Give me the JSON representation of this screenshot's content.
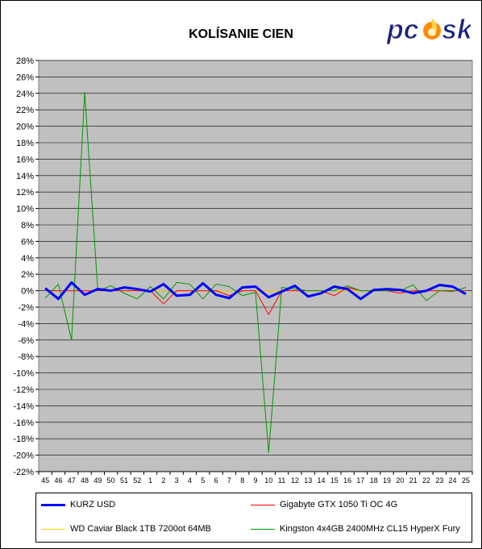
{
  "chart_data": {
    "type": "line",
    "title": "KOLÍSANIE CIEN",
    "x": [
      "45",
      "46",
      "47",
      "48",
      "49",
      "50",
      "51",
      "52",
      "1",
      "2",
      "3",
      "4",
      "5",
      "6",
      "7",
      "8",
      "9",
      "10",
      "11",
      "12",
      "13",
      "14",
      "15",
      "16",
      "17",
      "18",
      "19",
      "20",
      "21",
      "22",
      "23",
      "24",
      "25"
    ],
    "ylim": [
      -22,
      28
    ],
    "yticks": [
      -22,
      -20,
      -18,
      -16,
      -14,
      -12,
      -10,
      -8,
      -6,
      -4,
      -2,
      0,
      2,
      4,
      6,
      8,
      10,
      12,
      14,
      16,
      18,
      20,
      22,
      24,
      26,
      28
    ],
    "ytick_format": "percent",
    "grid": true,
    "legend_position": "bottom",
    "series": [
      {
        "name": "KURZ USD",
        "color": "#0000ff",
        "width": 3,
        "values": [
          0.3,
          -1.0,
          1.0,
          -0.5,
          0.2,
          0.0,
          0.4,
          0.2,
          -0.1,
          0.8,
          -0.6,
          -0.5,
          0.9,
          -0.5,
          -0.9,
          0.4,
          0.5,
          -0.8,
          -0.1,
          0.6,
          -0.7,
          -0.3,
          0.5,
          0.2,
          -1.0,
          0.1,
          0.2,
          0.1,
          -0.3,
          0.0,
          0.7,
          0.5,
          -0.4
        ]
      },
      {
        "name": "Gigabyte GTX 1050 Ti OC 4G",
        "color": "#ff0000",
        "width": 1,
        "values": [
          0.0,
          0.0,
          0.0,
          0.0,
          0.0,
          0.0,
          0.0,
          0.0,
          0.0,
          -1.6,
          0.0,
          0.0,
          0.0,
          0.0,
          -0.6,
          0.0,
          0.0,
          -2.9,
          0.0,
          0.0,
          0.0,
          0.0,
          -0.6,
          0.4,
          0.0,
          0.0,
          0.0,
          -0.3,
          0.0,
          0.0,
          0.0,
          0.0,
          0.0
        ]
      },
      {
        "name": "WD Caviar Black 1TB 7200ot 64MB",
        "color": "#ffcc00",
        "width": 1,
        "values": [
          0.0,
          0.0,
          0.0,
          0.0,
          0.0,
          0.0,
          0.0,
          0.0,
          0.0,
          0.0,
          0.0,
          0.0,
          0.0,
          0.0,
          0.0,
          0.0,
          0.0,
          0.0,
          0.0,
          0.0,
          0.0,
          0.0,
          0.0,
          0.0,
          0.0,
          0.0,
          0.0,
          0.0,
          0.0,
          0.0,
          0.0,
          0.0,
          0.0
        ]
      },
      {
        "name": "Kingston 4x4GB 2400MHz CL15 HyperX Fury",
        "color": "#009900",
        "width": 1,
        "values": [
          -0.9,
          0.8,
          -6.0,
          24.1,
          0.0,
          0.6,
          -0.3,
          -1.0,
          0.5,
          -1.0,
          1.0,
          0.8,
          -1.0,
          0.8,
          0.5,
          -0.6,
          -0.2,
          -19.7,
          0.4,
          0.2,
          0.0,
          0.0,
          0.0,
          0.6,
          0.0,
          0.0,
          0.0,
          0.0,
          0.7,
          -1.2,
          0.0,
          -0.1,
          0.4
        ]
      }
    ]
  },
  "logo": {
    "text": "pcesk",
    "dark_color": "#1a237e",
    "flame_color": "#ff8a00"
  }
}
